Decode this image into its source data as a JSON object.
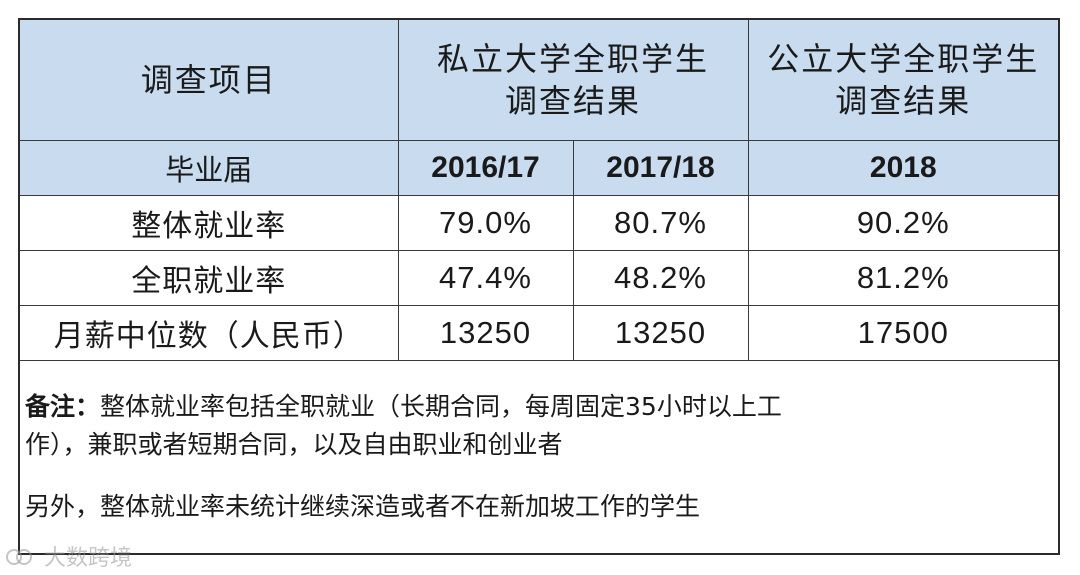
{
  "table": {
    "header": {
      "item": "调查项目",
      "private_line1": "私立大学全职学生",
      "private_line2": "调查结果",
      "public_line1": "公立大学全职学生",
      "public_line2": "调查结果"
    },
    "graduating_class": {
      "label": "毕业届",
      "years": [
        "2016/17",
        "2017/18",
        "2018"
      ]
    },
    "rows": [
      {
        "label": "整体就业率",
        "values": [
          "79.0%",
          "80.7%",
          "90.2%"
        ]
      },
      {
        "label": "全职就业率",
        "values": [
          "47.4%",
          "48.2%",
          "81.2%"
        ]
      },
      {
        "label": "月薪中位数（人民币）",
        "values": [
          "13250",
          "13250",
          "17500"
        ]
      }
    ]
  },
  "notes": {
    "label": "备注：",
    "line1": "整体就业率包括全职就业（长期合同，每周固定35小时以上工",
    "line2": "作），兼职或者短期合同，以及自由职业和创业者",
    "extra": "另外，整体就业率未统计继续深造或者不在新加坡工作的学生"
  },
  "watermark": {
    "text": "大数跨境",
    "icon": "weibo-icon"
  }
}
